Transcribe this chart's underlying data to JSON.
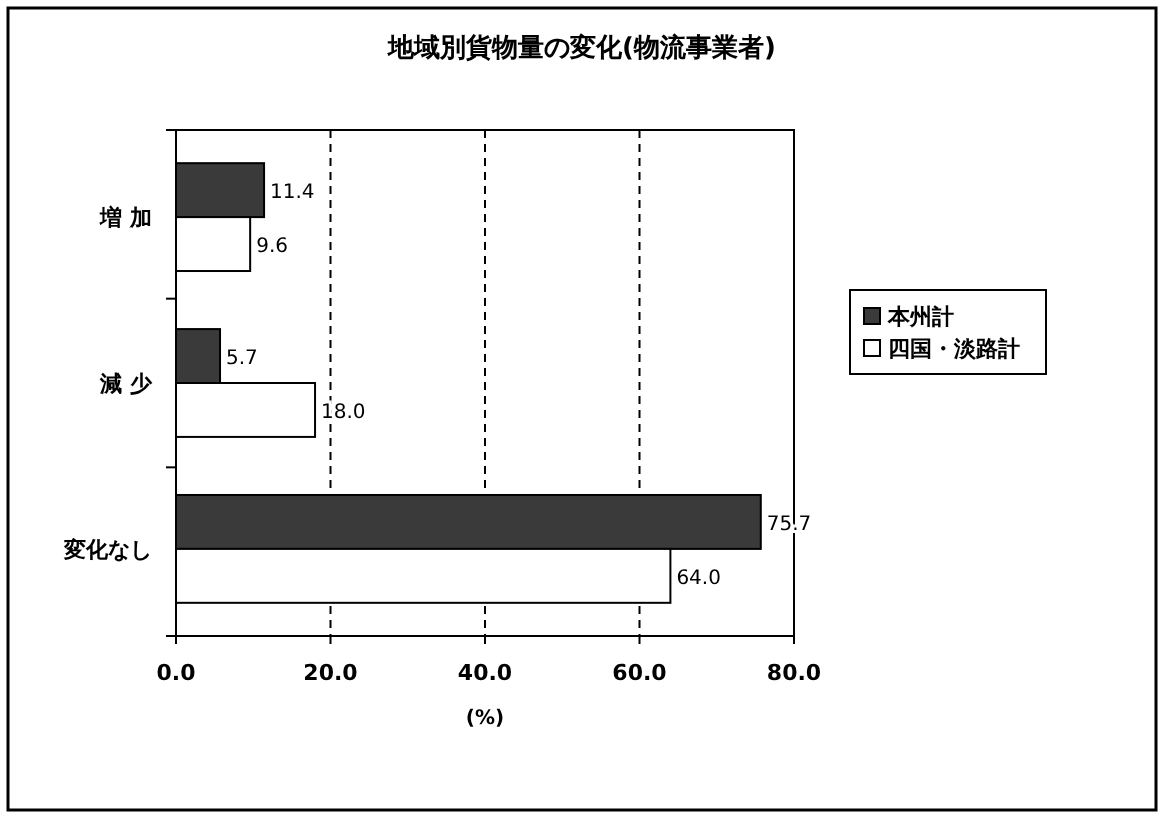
{
  "chart_data": {
    "type": "bar",
    "orientation": "horizontal",
    "title": "地域別貨物量の変化(物流事業者)",
    "xlabel": "(%)",
    "categories": [
      "増 加",
      "減 少",
      "変化なし"
    ],
    "series": [
      {
        "name": "本州計",
        "color": "#3a3a3a",
        "values": [
          11.4,
          5.7,
          75.7
        ],
        "value_labels": [
          "11.4",
          "5.7",
          "75.7"
        ]
      },
      {
        "name": "四国・淡路計",
        "color": "#ffffff",
        "values": [
          9.6,
          18.0,
          64.0
        ],
        "value_labels": [
          "9.6",
          "18.0",
          "64.0"
        ]
      }
    ],
    "xlim": [
      0,
      80
    ],
    "xticks": [
      {
        "value": 0,
        "label": "0.0"
      },
      {
        "value": 20,
        "label": "20.0"
      },
      {
        "value": 40,
        "label": "40.0"
      },
      {
        "value": 60,
        "label": "60.0"
      },
      {
        "value": 80,
        "label": "80.0"
      }
    ],
    "grid": "x",
    "line_style": "dashed",
    "legend": "right"
  }
}
